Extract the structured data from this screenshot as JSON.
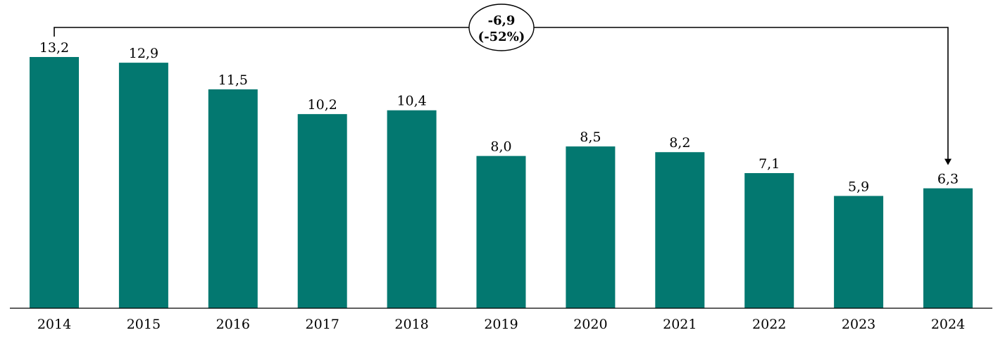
{
  "chart_data": {
    "type": "bar",
    "categories": [
      "2014",
      "2015",
      "2016",
      "2017",
      "2018",
      "2019",
      "2020",
      "2021",
      "2022",
      "2023",
      "2024"
    ],
    "values": [
      13.2,
      12.9,
      11.5,
      10.2,
      10.4,
      8.0,
      8.5,
      8.2,
      7.1,
      5.9,
      6.3
    ],
    "value_labels": [
      "13,2",
      "12,9",
      "11,5",
      "10,2",
      "10,4",
      "8,0",
      "8,5",
      "8,2",
      "7,1",
      "5,9",
      "6,3"
    ],
    "ylim": [
      0,
      13.2
    ],
    "grid": false,
    "bar_color": "#037870",
    "annotation": {
      "from": "2014",
      "to": "2024",
      "line1": "-6,9",
      "line2": "(-52%)"
    }
  }
}
